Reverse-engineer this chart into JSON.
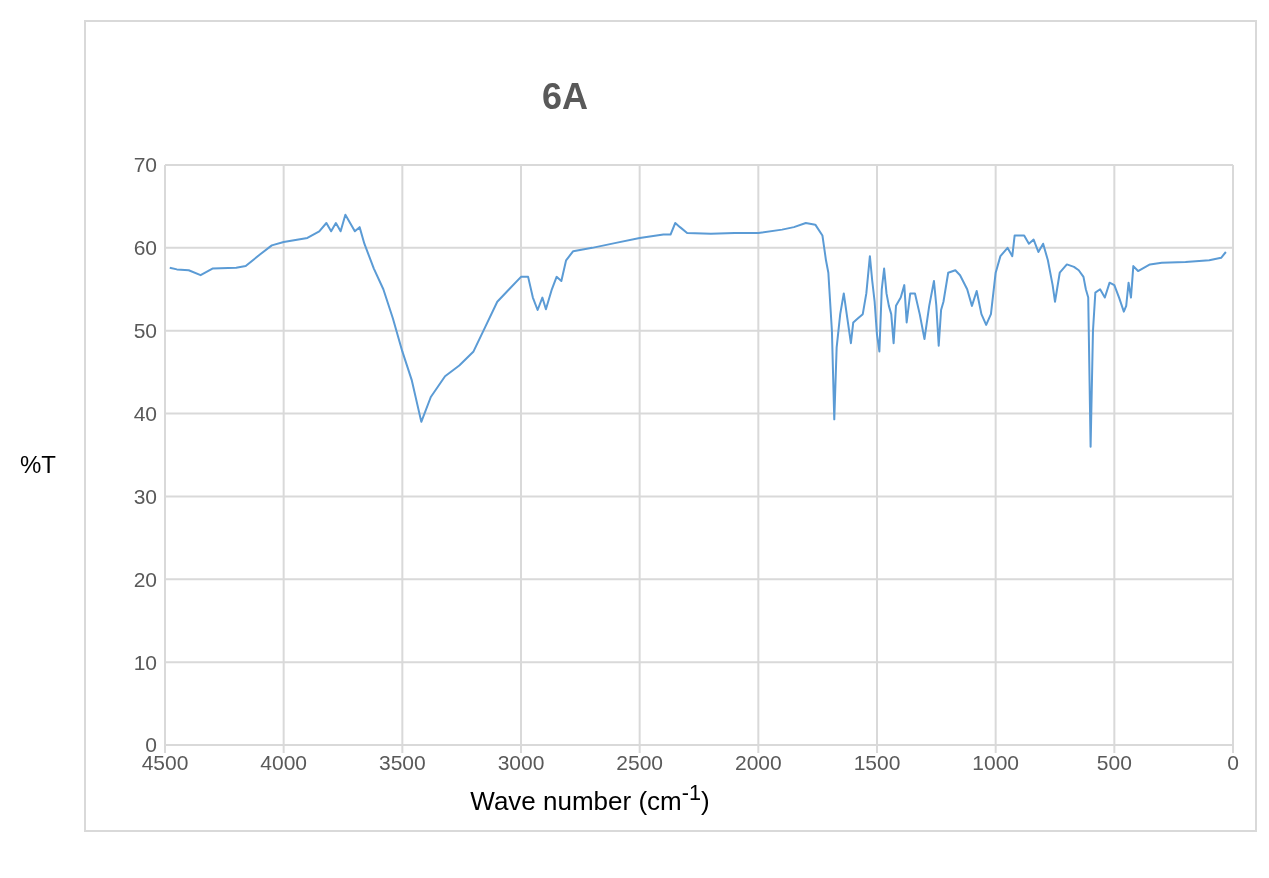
{
  "chart_data": {
    "type": "line",
    "title": "6A",
    "xlabel": "Wave number (cm$^{-1}$)",
    "ylabel": "%T",
    "xlim": [
      4500,
      0
    ],
    "xticks": [
      4500,
      4000,
      3500,
      3000,
      2500,
      2000,
      1500,
      1000,
      500,
      0
    ],
    "ylim": [
      0,
      70
    ],
    "yticks": [
      0,
      10,
      20,
      30,
      40,
      50,
      60,
      70
    ],
    "grid": true,
    "series": [
      {
        "color": "#5b9bd5",
        "x": [
          4480,
          4450,
          4400,
          4350,
          4300,
          4200,
          4160,
          4100,
          4050,
          4000,
          3900,
          3850,
          3820,
          3800,
          3780,
          3760,
          3740,
          3720,
          3700,
          3680,
          3660,
          3640,
          3620,
          3580,
          3540,
          3500,
          3460,
          3420,
          3380,
          3320,
          3260,
          3200,
          3150,
          3100,
          3050,
          3000,
          2970,
          2950,
          2930,
          2910,
          2895,
          2870,
          2850,
          2830,
          2810,
          2780,
          2700,
          2600,
          2500,
          2400,
          2370,
          2350,
          2330,
          2300,
          2200,
          2100,
          2000,
          1900,
          1850,
          1800,
          1760,
          1730,
          1715,
          1705,
          1690,
          1680,
          1670,
          1655,
          1640,
          1625,
          1610,
          1600,
          1580,
          1560,
          1545,
          1530,
          1520,
          1510,
          1500,
          1490,
          1480,
          1470,
          1460,
          1450,
          1440,
          1430,
          1420,
          1400,
          1385,
          1375,
          1360,
          1340,
          1320,
          1300,
          1280,
          1260,
          1250,
          1240,
          1230,
          1220,
          1200,
          1170,
          1150,
          1120,
          1100,
          1080,
          1060,
          1040,
          1020,
          1000,
          980,
          950,
          930,
          920,
          880,
          860,
          840,
          820,
          800,
          780,
          760,
          750,
          730,
          700,
          670,
          650,
          630,
          620,
          610,
          600,
          590,
          580,
          560,
          540,
          520,
          500,
          480,
          460,
          450,
          440,
          430,
          420,
          400,
          350,
          300,
          200,
          100,
          50,
          30
        ],
        "values": [
          57.6,
          57.4,
          57.3,
          56.7,
          57.5,
          57.6,
          57.8,
          59.2,
          60.3,
          60.7,
          61.2,
          62.0,
          63.0,
          62.0,
          63.0,
          62.0,
          64.0,
          63.0,
          62.0,
          62.5,
          60.5,
          59.0,
          57.5,
          55.0,
          51.5,
          47.5,
          44.0,
          39.0,
          42.0,
          44.5,
          45.8,
          47.5,
          50.5,
          53.5,
          55.0,
          56.5,
          56.5,
          54.0,
          52.5,
          54.0,
          52.6,
          55.0,
          56.5,
          56.0,
          58.5,
          59.6,
          60.0,
          60.6,
          61.2,
          61.6,
          61.6,
          63.0,
          62.5,
          61.8,
          61.7,
          61.8,
          61.8,
          62.2,
          62.5,
          63.0,
          62.8,
          61.5,
          58.5,
          57.0,
          50,
          39.3,
          48,
          52,
          54.5,
          51.5,
          48.5,
          51,
          51.5,
          52,
          54.5,
          59,
          56,
          53.5,
          49.5,
          47.5,
          55,
          57.5,
          54.5,
          53,
          52,
          48.5,
          53,
          54,
          55.5,
          51,
          54.5,
          54.5,
          52,
          49,
          53,
          56,
          53,
          48.2,
          52.5,
          53.5,
          57,
          57.3,
          56.7,
          55,
          53,
          54.8,
          52,
          50.7,
          52,
          57,
          59,
          60,
          59,
          61.5,
          61.5,
          60.5,
          61,
          59.5,
          60.5,
          58.5,
          55.5,
          53.5,
          57,
          58,
          57.7,
          57.3,
          56.5,
          55,
          54,
          36,
          50,
          54.6,
          55,
          54,
          55.8,
          55.5,
          54,
          52.3,
          53,
          55.8,
          54,
          57.8,
          57.2,
          58,
          58.2,
          58.3,
          58.5,
          58.8,
          59.5
        ]
      }
    ]
  }
}
